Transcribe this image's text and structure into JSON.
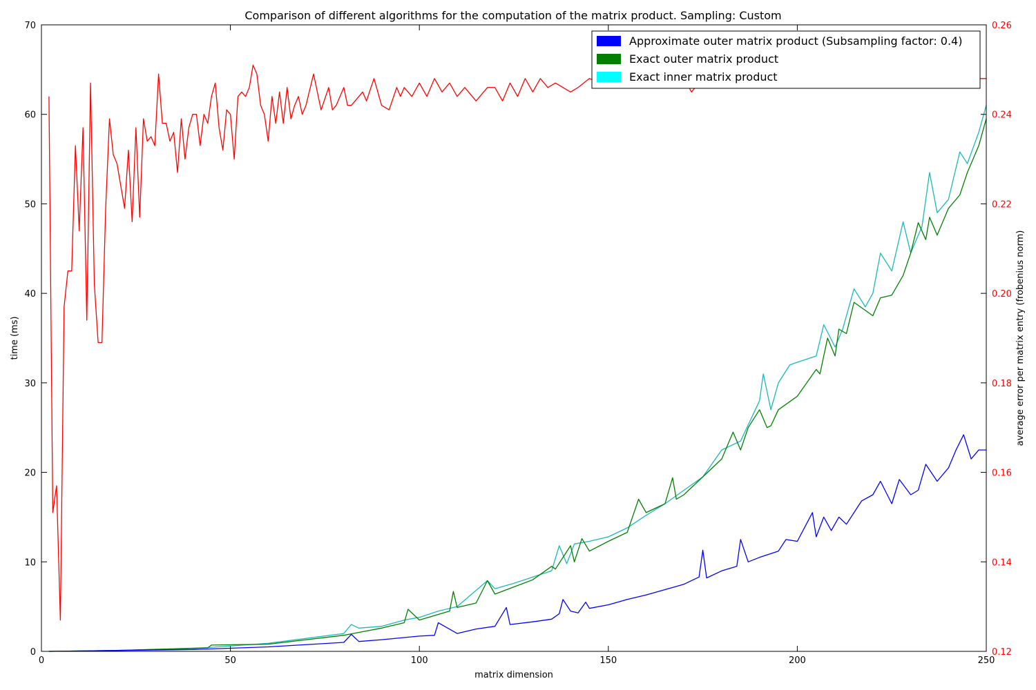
{
  "chart_data": {
    "type": "line",
    "title": "Comparison of different algorithms for the computation of the matrix product. Sampling: Custom",
    "xlabel": "matrix dimension",
    "ylabel": "time (ms)",
    "y2label": "average error per matrix entry (frobenius norm)",
    "xlim": [
      0,
      250
    ],
    "ylim": [
      0,
      70
    ],
    "y2lim": [
      0.12,
      0.26
    ],
    "x_ticks": [
      "0",
      "50",
      "100",
      "150",
      "200",
      "250"
    ],
    "y_ticks": [
      "0",
      "10",
      "20",
      "30",
      "40",
      "50",
      "60",
      "70"
    ],
    "y2_ticks": [
      "0.12",
      "0.14",
      "0.16",
      "0.18",
      "0.20",
      "0.22",
      "0.24",
      "0.26"
    ],
    "grid": false,
    "legend_position": "top-right",
    "colors": {
      "approx": "#0000ff",
      "outer": "#008000",
      "inner": "#1ab8b8",
      "inner_legend": "#00ffff",
      "error": "#ff0000",
      "axis_right": "#ff0000"
    },
    "legend": [
      {
        "label": "Approximate outer matrix product (Subsampling factor: 0.4)",
        "color": "#0000ff"
      },
      {
        "label": "Exact outer matrix product",
        "color": "#008000"
      },
      {
        "label": "Exact inner matrix product",
        "color": "#00ffff"
      }
    ],
    "series": [
      {
        "name": "Exact inner matrix product",
        "axis": "left",
        "color": "#1ab8b8",
        "x": [
          2,
          20,
          40,
          60,
          80,
          82,
          84,
          90,
          96,
          100,
          105,
          110,
          118,
          120,
          125,
          130,
          135,
          137,
          139,
          141,
          145,
          150,
          155,
          160,
          165,
          170,
          175,
          180,
          185,
          190,
          191,
          193,
          195,
          198,
          200,
          205,
          207,
          210,
          212,
          215,
          218,
          220,
          222,
          225,
          228,
          230,
          233,
          235,
          237,
          240,
          243,
          245,
          248,
          250
        ],
        "y": [
          0,
          0.1,
          0.3,
          0.9,
          2.0,
          3.0,
          2.6,
          2.8,
          3.5,
          3.8,
          4.5,
          5.0,
          7.9,
          7.0,
          7.6,
          8.3,
          9.0,
          11.8,
          9.8,
          12.0,
          12.3,
          12.8,
          13.8,
          15.2,
          16.5,
          18.0,
          19.5,
          22.5,
          23.5,
          28.0,
          31.0,
          27.0,
          30.0,
          32.0,
          32.3,
          33.0,
          36.5,
          34.0,
          36.0,
          40.5,
          38.5,
          40.0,
          44.5,
          42.5,
          48.0,
          44.5,
          47.5,
          53.5,
          49.0,
          50.5,
          55.8,
          54.5,
          58.0,
          61.0
        ]
      },
      {
        "name": "Exact outer matrix product",
        "axis": "left",
        "color": "#008000",
        "x": [
          2,
          20,
          44,
          45,
          60,
          80,
          90,
          96,
          97,
          100,
          108,
          109,
          110,
          115,
          118,
          120,
          125,
          130,
          135,
          136,
          140,
          141,
          143,
          145,
          150,
          155,
          158,
          160,
          165,
          167,
          168,
          170,
          175,
          180,
          183,
          185,
          187,
          190,
          192,
          193,
          195,
          200,
          205,
          206,
          208,
          210,
          211,
          213,
          215,
          220,
          222,
          225,
          228,
          230,
          232,
          234,
          235,
          237,
          240,
          243,
          245,
          248,
          250
        ],
        "y": [
          0,
          0.1,
          0.4,
          0.7,
          0.8,
          1.8,
          2.6,
          3.2,
          4.7,
          3.5,
          4.5,
          6.7,
          4.9,
          5.4,
          7.9,
          6.4,
          7.2,
          8.0,
          9.5,
          9.2,
          11.8,
          10.0,
          12.6,
          11.2,
          12.3,
          13.3,
          17.0,
          15.5,
          16.5,
          19.4,
          17.0,
          17.5,
          19.5,
          21.5,
          24.5,
          22.5,
          25.0,
          27.0,
          25.0,
          25.2,
          27.0,
          28.5,
          31.5,
          31.0,
          35.0,
          33.0,
          36.0,
          35.5,
          39.0,
          37.5,
          39.5,
          39.8,
          42.0,
          44.5,
          47.9,
          46.0,
          48.5,
          46.5,
          49.5,
          51.0,
          53.5,
          56.5,
          59.5
        ]
      },
      {
        "name": "Approximate outer matrix product (Subsampling factor: 0.4)",
        "axis": "left",
        "color": "#0000ff",
        "x": [
          2,
          20,
          40,
          60,
          80,
          82,
          84,
          90,
          100,
          104,
          105,
          110,
          115,
          120,
          123,
          124,
          130,
          135,
          137,
          138,
          140,
          142,
          144,
          145,
          150,
          155,
          160,
          165,
          170,
          174,
          175,
          176,
          180,
          184,
          185,
          187,
          190,
          195,
          197,
          200,
          204,
          205,
          207,
          209,
          211,
          213,
          215,
          217,
          220,
          222,
          225,
          227,
          230,
          232,
          234,
          237,
          240,
          242,
          244,
          246,
          248,
          250
        ],
        "y": [
          0,
          0.1,
          0.2,
          0.5,
          1.0,
          1.9,
          1.1,
          1.3,
          1.7,
          1.8,
          3.2,
          2.0,
          2.5,
          2.8,
          4.9,
          3.0,
          3.3,
          3.6,
          4.2,
          5.8,
          4.5,
          4.3,
          5.5,
          4.8,
          5.2,
          5.8,
          6.3,
          6.9,
          7.5,
          8.3,
          11.3,
          8.2,
          9.0,
          9.5,
          12.5,
          10.0,
          10.5,
          11.2,
          12.5,
          12.3,
          15.5,
          12.8,
          15.0,
          13.5,
          15.0,
          14.2,
          15.5,
          16.8,
          17.5,
          19.0,
          16.5,
          19.2,
          17.5,
          18.0,
          20.9,
          19.0,
          20.5,
          22.5,
          24.2,
          21.5,
          22.5,
          22.5
        ]
      },
      {
        "name": "average error per matrix entry",
        "axis": "right",
        "color": "#ff0000",
        "x": [
          2,
          3,
          4,
          5,
          6,
          7,
          8,
          9,
          10,
          11,
          12,
          13,
          14,
          15,
          16,
          17,
          18,
          19,
          20,
          22,
          23,
          24,
          25,
          26,
          27,
          28,
          29,
          30,
          31,
          32,
          33,
          34,
          35,
          36,
          37,
          38,
          39,
          40,
          41,
          42,
          43,
          44,
          45,
          46,
          47,
          48,
          49,
          50,
          51,
          52,
          53,
          54,
          55,
          56,
          57,
          58,
          59,
          60,
          61,
          62,
          63,
          64,
          65,
          66,
          67,
          68,
          69,
          70,
          72,
          74,
          76,
          77,
          78,
          80,
          81,
          82,
          84,
          85,
          86,
          88,
          90,
          92,
          94,
          95,
          96,
          98,
          100,
          102,
          104,
          106,
          108,
          110,
          112,
          115,
          118,
          120,
          122,
          124,
          126,
          128,
          130,
          132,
          134,
          136,
          138,
          140,
          142,
          145,
          148,
          150,
          152,
          155,
          158,
          160,
          162,
          165,
          168,
          170,
          172,
          175,
          178,
          180,
          182,
          185,
          188,
          190,
          192,
          195,
          197,
          200,
          202,
          205,
          208,
          210,
          212,
          215,
          218,
          220,
          222,
          225,
          228,
          230,
          232,
          235,
          238,
          240,
          242,
          245,
          248,
          250
        ],
        "y": [
          0.244,
          0.151,
          0.157,
          0.127,
          0.197,
          0.205,
          0.205,
          0.233,
          0.214,
          0.237,
          0.194,
          0.247,
          0.202,
          0.189,
          0.189,
          0.219,
          0.239,
          0.231,
          0.229,
          0.219,
          0.232,
          0.216,
          0.237,
          0.217,
          0.239,
          0.234,
          0.235,
          0.233,
          0.249,
          0.238,
          0.238,
          0.234,
          0.236,
          0.227,
          0.239,
          0.23,
          0.237,
          0.24,
          0.24,
          0.233,
          0.24,
          0.238,
          0.244,
          0.247,
          0.237,
          0.232,
          0.241,
          0.24,
          0.23,
          0.244,
          0.245,
          0.244,
          0.246,
          0.251,
          0.249,
          0.242,
          0.24,
          0.234,
          0.244,
          0.238,
          0.245,
          0.238,
          0.246,
          0.239,
          0.242,
          0.244,
          0.24,
          0.242,
          0.249,
          0.241,
          0.246,
          0.241,
          0.242,
          0.246,
          0.242,
          0.242,
          0.244,
          0.245,
          0.243,
          0.248,
          0.242,
          0.241,
          0.246,
          0.244,
          0.246,
          0.244,
          0.247,
          0.244,
          0.248,
          0.245,
          0.247,
          0.244,
          0.246,
          0.243,
          0.246,
          0.246,
          0.243,
          0.247,
          0.244,
          0.248,
          0.245,
          0.248,
          0.246,
          0.247,
          0.246,
          0.245,
          0.246,
          0.248,
          0.247,
          0.246,
          0.248,
          0.246,
          0.247,
          0.248,
          0.246,
          0.249,
          0.246,
          0.248,
          0.245,
          0.248,
          0.246,
          0.25,
          0.247,
          0.246,
          0.248,
          0.247,
          0.248,
          0.246,
          0.247,
          0.25,
          0.247,
          0.248,
          0.246,
          0.247,
          0.246,
          0.248,
          0.246,
          0.248,
          0.247,
          0.249,
          0.247,
          0.246,
          0.247,
          0.248,
          0.247,
          0.248,
          0.249,
          0.247,
          0.248,
          0.248
        ]
      }
    ]
  }
}
